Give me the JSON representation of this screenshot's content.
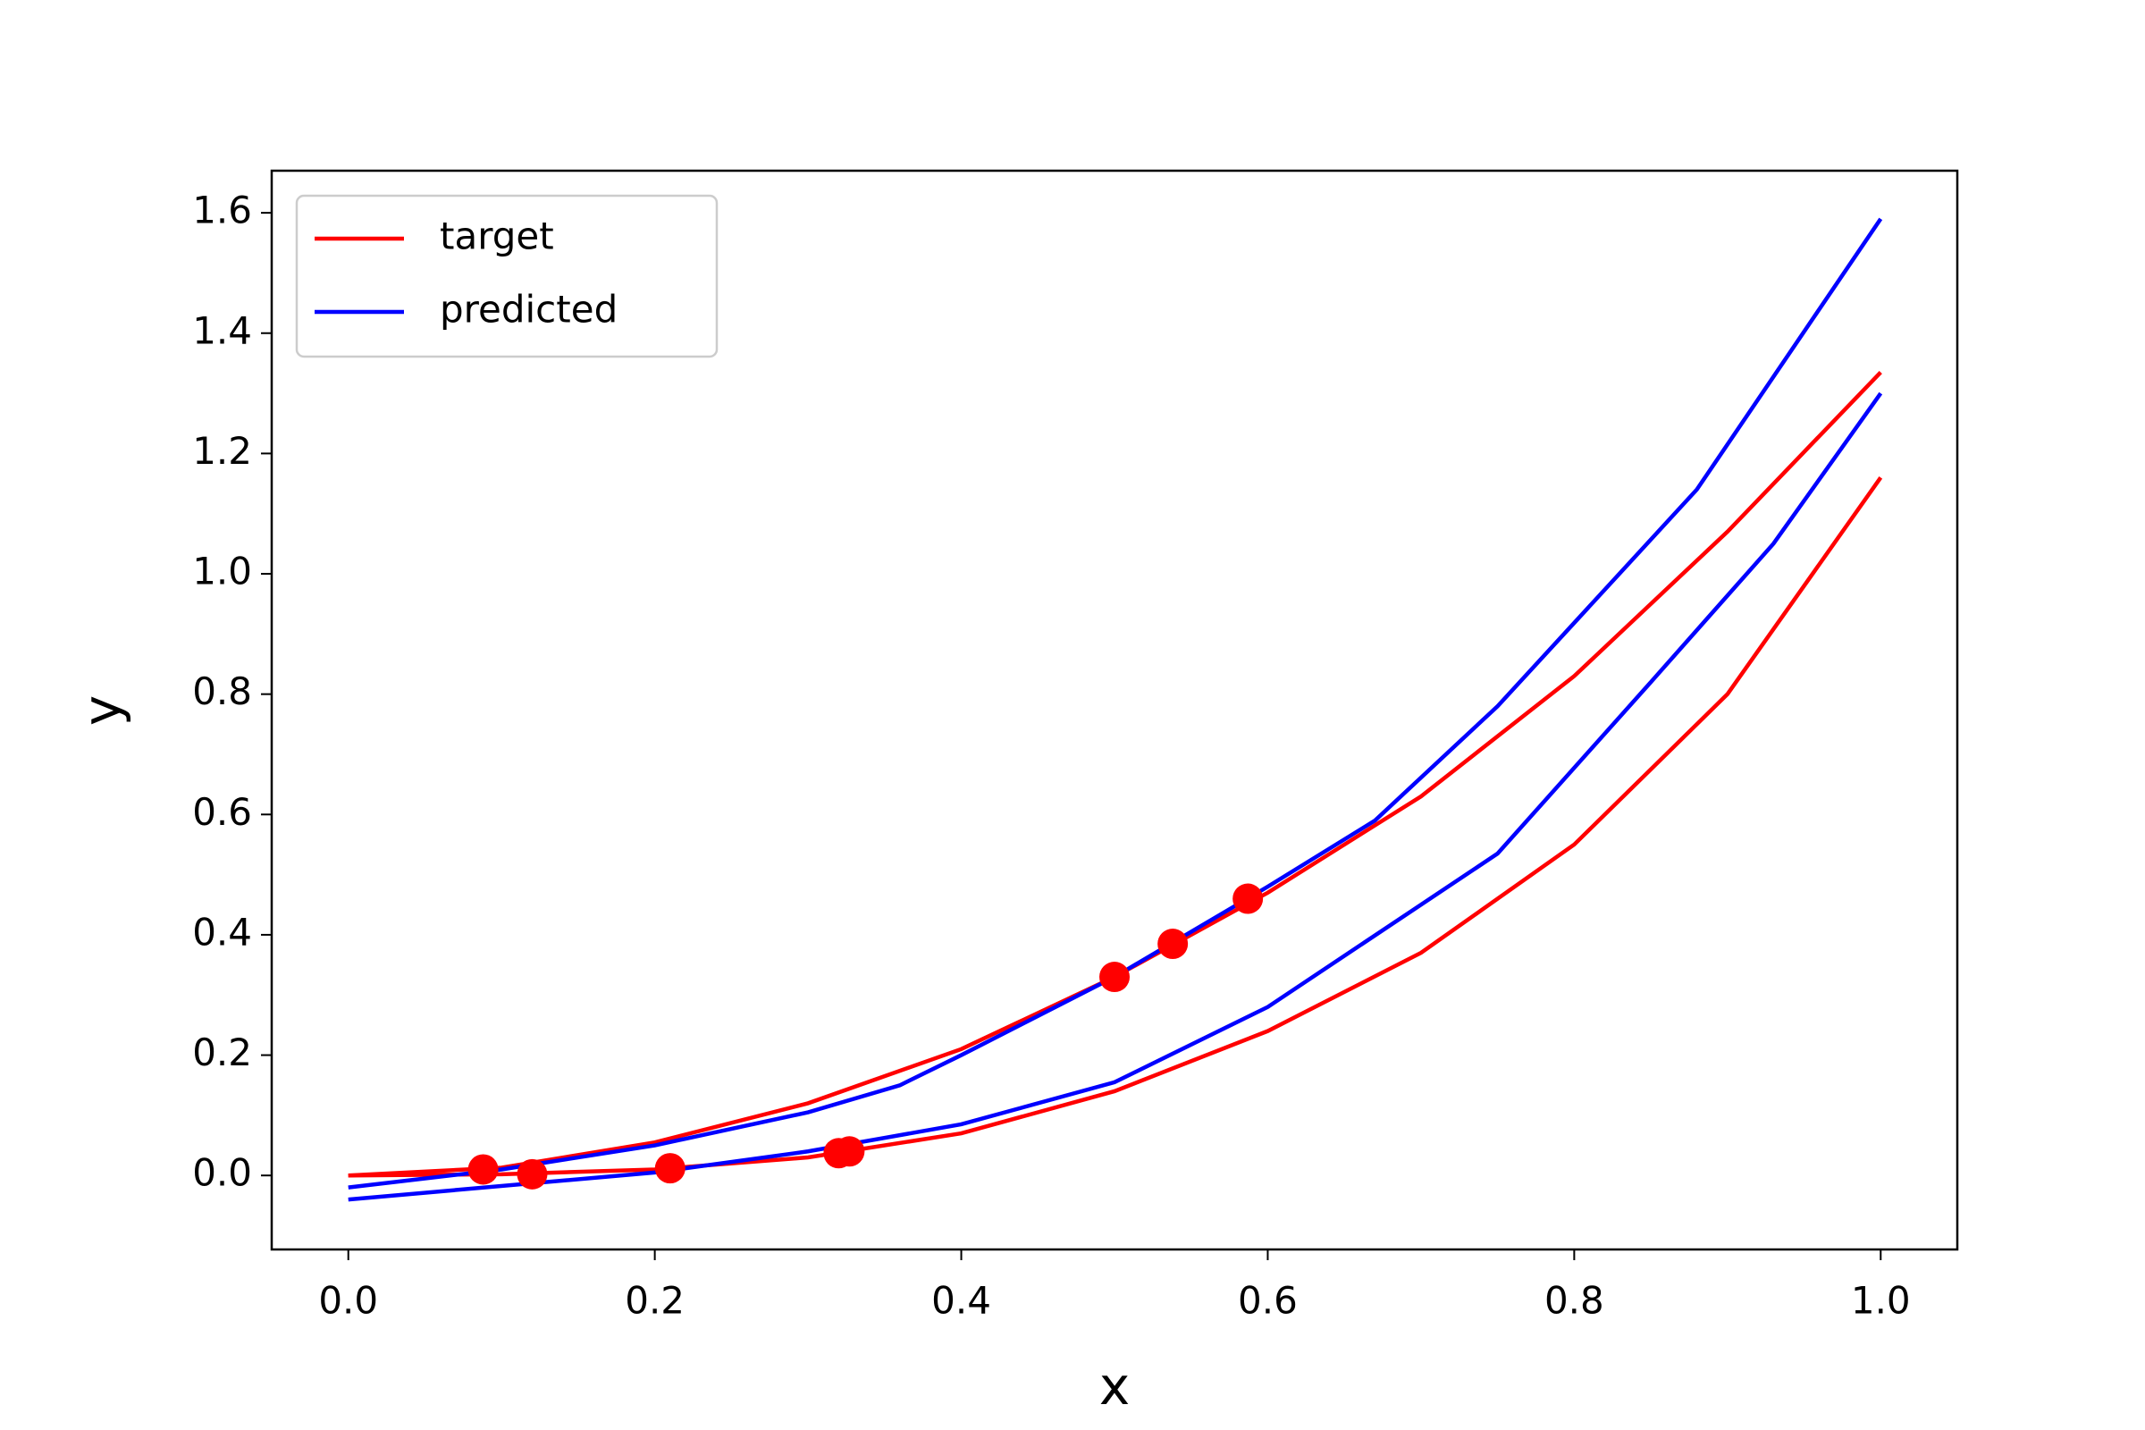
{
  "chart_data": {
    "type": "line",
    "xlabel": "x",
    "ylabel": "y",
    "xlim": [
      -0.05,
      1.05
    ],
    "ylim": [
      -0.123,
      1.67
    ],
    "xticks": [
      {
        "value": 0,
        "label": "0.0"
      },
      0.2,
      0.4,
      0.6,
      0.8,
      {
        "value": 1,
        "label": "1.0"
      }
    ],
    "yticks": [
      {
        "value": 0,
        "label": "0.0"
      },
      0.2,
      0.4,
      0.6,
      0.8,
      {
        "value": 1,
        "label": "1.0"
      },
      1.2,
      1.4,
      1.6
    ],
    "grid": false,
    "legend": "upper left",
    "series": [
      {
        "name": "target",
        "color": "#ff0000",
        "lines": [
          {
            "x": [
              0,
              0.1,
              0.2,
              0.3,
              0.4,
              0.5,
              0.6,
              0.7,
              0.8,
              0.9,
              1.0
            ],
            "values": [
              0,
              0.013,
              0.055,
              0.12,
              0.21,
              0.33,
              0.47,
              0.63,
              0.83,
              1.07,
              1.335
            ]
          },
          {
            "x": [
              0,
              0.1,
              0.2,
              0.3,
              0.4,
              0.5,
              0.6,
              0.7,
              0.8,
              0.9,
              1.0
            ],
            "values": [
              0,
              0.002,
              0.01,
              0.03,
              0.07,
              0.14,
              0.24,
              0.37,
              0.55,
              0.8,
              1.16
            ]
          }
        ]
      },
      {
        "name": "predicted",
        "color": "#0000ff",
        "lines": [
          {
            "x": [
              0,
              0.1,
              0.2,
              0.3,
              0.36,
              0.4,
              0.5,
              0.6,
              0.67,
              0.75,
              0.88,
              1.0
            ],
            "values": [
              -0.02,
              0.01,
              0.05,
              0.105,
              0.15,
              0.2,
              0.33,
              0.48,
              0.59,
              0.78,
              1.14,
              1.59
            ]
          },
          {
            "x": [
              0,
              0.2,
              0.3,
              0.4,
              0.5,
              0.6,
              0.75,
              0.85,
              0.93,
              1.0
            ],
            "values": [
              -0.04,
              0.005,
              0.04,
              0.085,
              0.155,
              0.28,
              0.535,
              0.82,
              1.05,
              1.3
            ]
          }
        ]
      }
    ],
    "points": {
      "color": "#ff0000",
      "x": [
        0.088,
        0.12,
        0.21,
        0.32,
        0.327,
        0.5,
        0.538,
        0.587
      ],
      "values": [
        0.01,
        0.002,
        0.012,
        0.037,
        0.04,
        0.33,
        0.385,
        0.46
      ]
    }
  }
}
